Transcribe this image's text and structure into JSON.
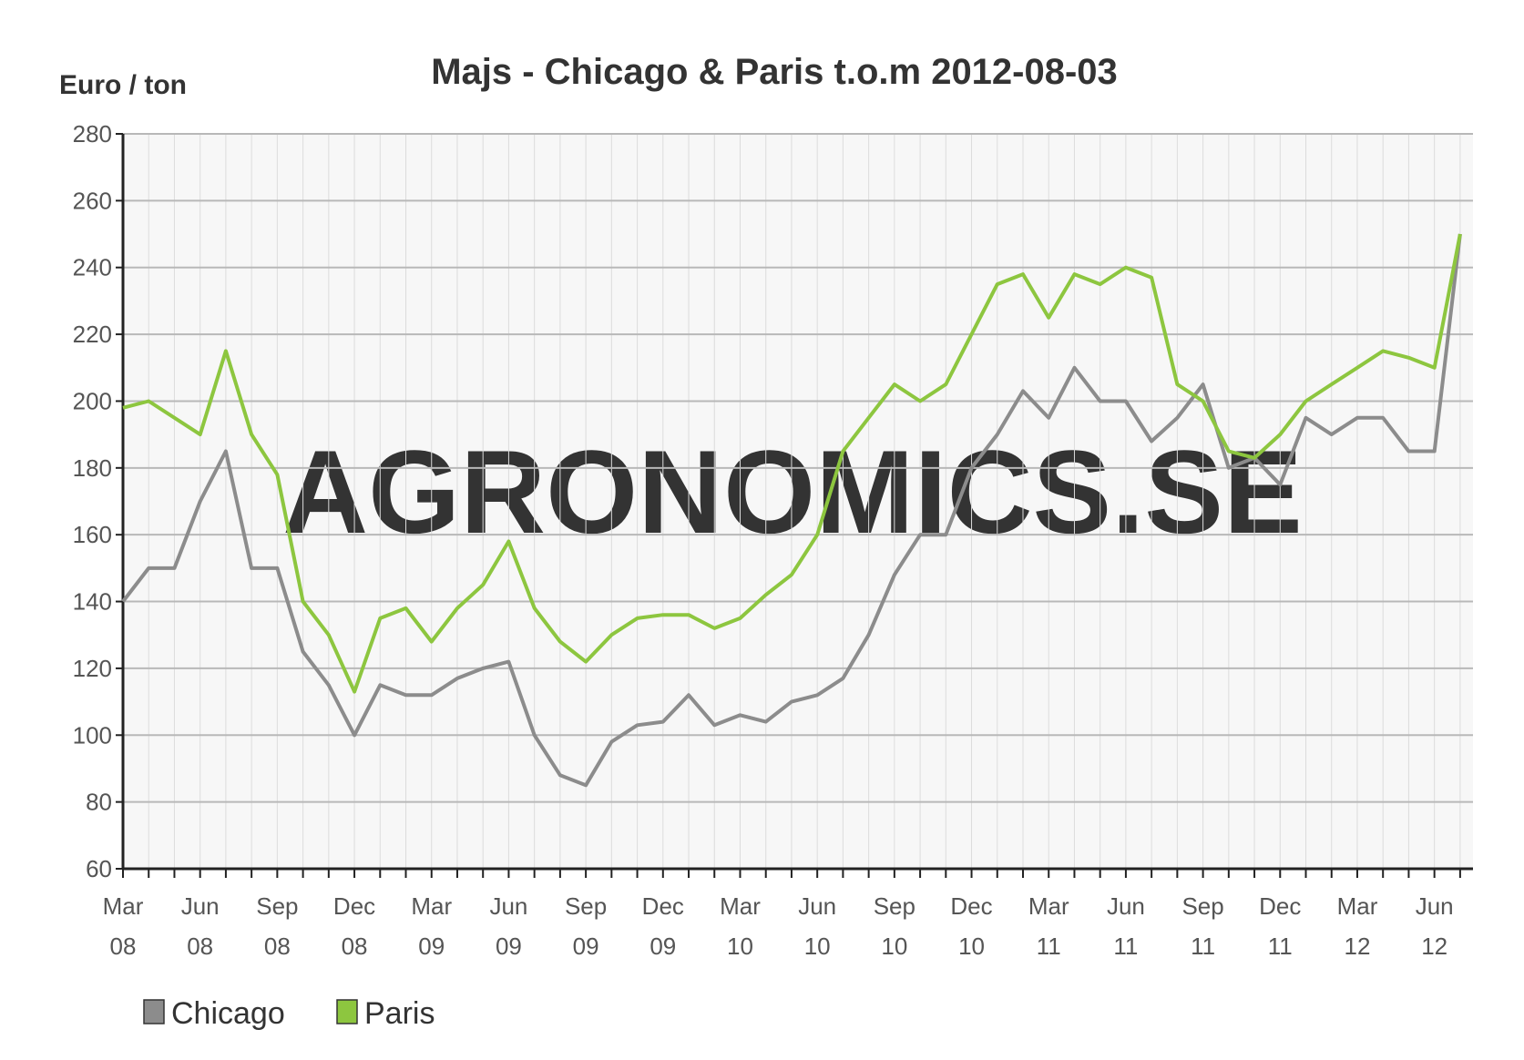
{
  "chart_data": {
    "type": "line",
    "title": "Majs - Chicago & Paris t.o.m 2012-08-03",
    "y_label": "Euro / ton",
    "watermark": "AGRONOMICS.SE",
    "categories": [
      "Mar 08",
      null,
      null,
      "Jun 08",
      null,
      null,
      "Sep 08",
      null,
      null,
      "Dec 08",
      null,
      null,
      "Mar 09",
      null,
      null,
      "Jun 09",
      null,
      null,
      "Sep 09",
      null,
      null,
      "Dec 09",
      null,
      null,
      "Mar 10",
      null,
      null,
      "Jun 10",
      null,
      null,
      "Sep 10",
      null,
      null,
      "Dec 10",
      null,
      null,
      "Mar 11",
      null,
      null,
      "Jun 11",
      null,
      null,
      "Sep 11",
      null,
      null,
      "Dec 11",
      null,
      null,
      "Mar 12",
      null,
      null,
      "Jun 12",
      null
    ],
    "series": [
      {
        "name": "Chicago",
        "color": "#8c8c8c",
        "values": [
          140,
          150,
          150,
          170,
          185,
          150,
          150,
          125,
          115,
          100,
          115,
          112,
          112,
          117,
          120,
          122,
          100,
          88,
          85,
          98,
          103,
          104,
          112,
          103,
          106,
          104,
          110,
          112,
          117,
          130,
          148,
          160,
          160,
          180,
          190,
          203,
          195,
          210,
          200,
          200,
          188,
          195,
          205,
          180,
          183,
          175,
          195,
          190,
          195,
          195,
          185,
          185,
          250
        ]
      },
      {
        "name": "Paris",
        "color": "#8dc63f",
        "values": [
          198,
          200,
          195,
          190,
          215,
          190,
          178,
          140,
          130,
          113,
          135,
          138,
          128,
          138,
          145,
          158,
          138,
          128,
          122,
          130,
          135,
          136,
          136,
          132,
          135,
          142,
          148,
          160,
          185,
          195,
          205,
          200,
          205,
          220,
          235,
          238,
          225,
          238,
          235,
          240,
          237,
          205,
          200,
          185,
          183,
          190,
          200,
          205,
          210,
          215,
          213,
          210,
          250
        ]
      }
    ],
    "ylim": [
      60,
      280
    ],
    "yticks": [
      60,
      80,
      100,
      120,
      140,
      160,
      180,
      200,
      220,
      240,
      260,
      280
    ],
    "grid": true,
    "legend": "bottom-left"
  }
}
